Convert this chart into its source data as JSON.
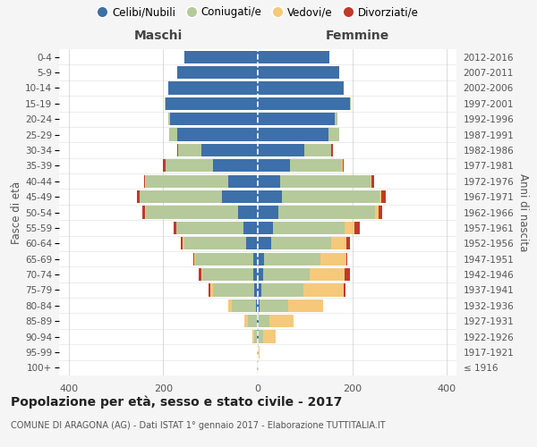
{
  "age_groups": [
    "100+",
    "95-99",
    "90-94",
    "85-89",
    "80-84",
    "75-79",
    "70-74",
    "65-69",
    "60-64",
    "55-59",
    "50-54",
    "45-49",
    "40-44",
    "35-39",
    "30-34",
    "25-29",
    "20-24",
    "15-19",
    "10-14",
    "5-9",
    "0-4"
  ],
  "birth_years": [
    "≤ 1916",
    "1917-1921",
    "1922-1926",
    "1927-1931",
    "1932-1936",
    "1937-1941",
    "1942-1946",
    "1947-1951",
    "1952-1956",
    "1957-1961",
    "1962-1966",
    "1967-1971",
    "1972-1976",
    "1977-1981",
    "1982-1986",
    "1987-1991",
    "1992-1996",
    "1997-2001",
    "2002-2006",
    "2007-2011",
    "2012-2016"
  ],
  "males_celibi": [
    0,
    0,
    1,
    2,
    3,
    7,
    9,
    10,
    24,
    30,
    42,
    75,
    62,
    95,
    120,
    170,
    185,
    195,
    190,
    170,
    155
  ],
  "males_coniugati": [
    1,
    2,
    7,
    18,
    52,
    88,
    108,
    122,
    132,
    142,
    195,
    175,
    175,
    100,
    48,
    18,
    4,
    2,
    0,
    0,
    0
  ],
  "males_vedovi": [
    0,
    0,
    4,
    8,
    7,
    5,
    3,
    2,
    2,
    0,
    1,
    0,
    1,
    0,
    0,
    0,
    0,
    0,
    0,
    0,
    0
  ],
  "males_divorziati": [
    0,
    0,
    0,
    0,
    0,
    4,
    5,
    2,
    5,
    5,
    7,
    5,
    3,
    5,
    3,
    0,
    0,
    0,
    0,
    0,
    0
  ],
  "fem_nubili": [
    0,
    0,
    2,
    2,
    4,
    8,
    11,
    14,
    28,
    33,
    43,
    52,
    48,
    68,
    98,
    150,
    162,
    195,
    182,
    172,
    152
  ],
  "fem_coniugate": [
    0,
    2,
    10,
    22,
    60,
    88,
    98,
    118,
    128,
    150,
    205,
    205,
    190,
    110,
    58,
    22,
    7,
    2,
    0,
    0,
    0
  ],
  "fem_vedove": [
    0,
    2,
    25,
    52,
    75,
    85,
    75,
    55,
    32,
    22,
    8,
    4,
    2,
    1,
    0,
    0,
    0,
    0,
    0,
    0,
    0
  ],
  "fem_divorziate": [
    0,
    0,
    0,
    0,
    0,
    5,
    10,
    2,
    7,
    10,
    7,
    10,
    5,
    2,
    2,
    1,
    0,
    0,
    0,
    0,
    0
  ],
  "color_celibi": "#3d6fa8",
  "color_coniugati": "#b5c99a",
  "color_vedovi": "#f5c97a",
  "color_divorziati": "#c0392b",
  "xlim": 420,
  "title": "Popolazione per età, sesso e stato civile - 2017",
  "subtitle": "COMUNE DI ARAGONA (AG) - Dati ISTAT 1° gennaio 2017 - Elaborazione TUTTITALIA.IT",
  "ylabel_left": "Fasce di età",
  "ylabel_right": "Anni di nascita",
  "label_male": "Maschi",
  "label_female": "Femmine",
  "legend_labels": [
    "Celibi/Nubili",
    "Coniugati/e",
    "Vedovi/e",
    "Divorziati/e"
  ],
  "bg_color": "#f5f5f5",
  "plot_bg": "#ffffff"
}
